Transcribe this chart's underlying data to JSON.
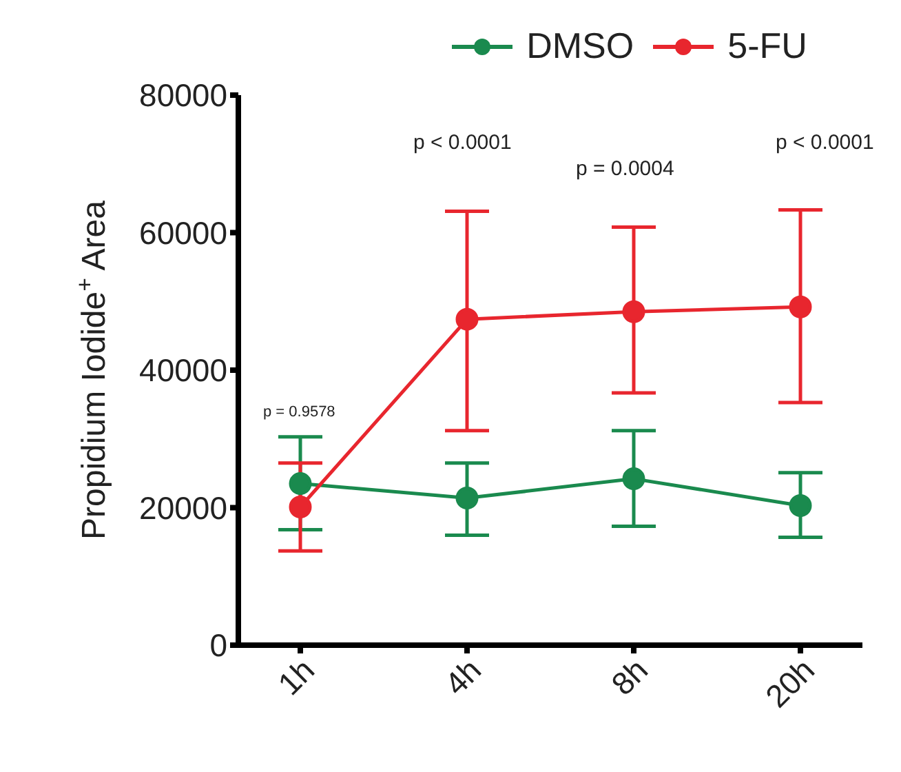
{
  "chart_data": {
    "type": "line",
    "ylabel": "Propidium Iodide$^{+}$ Area",
    "categories": [
      "1h",
      "4h",
      "8h",
      "20h"
    ],
    "series": [
      {
        "name": "DMSO",
        "color": "#1a8a4e",
        "values": [
          23500,
          21400,
          24200,
          20300
        ],
        "errors": [
          [
            16800,
            30300
          ],
          [
            16000,
            26500
          ],
          [
            17300,
            31200
          ],
          [
            15700,
            25100
          ]
        ]
      },
      {
        "name": "5-FU",
        "color": "#e8262e",
        "values": [
          20100,
          47400,
          48500,
          49200
        ],
        "errors": [
          [
            13700,
            26500
          ],
          [
            31200,
            63100
          ],
          [
            36700,
            60800
          ],
          [
            35300,
            63300
          ]
        ]
      }
    ],
    "ylim": [
      0,
      80000
    ],
    "yticks": [
      0,
      20000,
      40000,
      60000,
      80000
    ],
    "grid": false,
    "legend": "top",
    "marker": "circle",
    "line_style": "solid",
    "annotations": [
      "p = 0.9578",
      "p < 0.0001",
      "p = 0.0004",
      "p < 0.0001"
    ]
  }
}
